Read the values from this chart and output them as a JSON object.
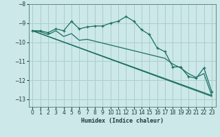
{
  "xlabel": "Humidex (Indice chaleur)",
  "background_color": "#cce8e8",
  "grid_color": "#aacece",
  "line_color": "#1a6e60",
  "xlim": [
    -0.5,
    23.5
  ],
  "ylim": [
    -13.4,
    -8.0
  ],
  "yticks": [
    -13,
    -12,
    -11,
    -10,
    -9,
    -8
  ],
  "xticks": [
    0,
    1,
    2,
    3,
    4,
    5,
    6,
    7,
    8,
    9,
    10,
    11,
    12,
    13,
    14,
    15,
    16,
    17,
    18,
    19,
    20,
    21,
    22,
    23
  ],
  "series1_x": [
    0,
    1,
    2,
    3,
    4,
    5,
    6,
    7,
    8,
    9,
    10,
    11,
    12,
    13,
    14,
    15,
    16,
    17,
    18,
    19,
    20,
    21,
    22,
    23
  ],
  "series1_y": [
    -9.4,
    -9.4,
    -9.5,
    -9.3,
    -9.4,
    -8.9,
    -9.3,
    -9.2,
    -9.15,
    -9.15,
    -9.0,
    -8.9,
    -8.65,
    -8.9,
    -9.35,
    -9.6,
    -10.3,
    -10.5,
    -11.3,
    -11.3,
    -11.8,
    -11.9,
    -11.35,
    -12.6
  ],
  "series2_x": [
    0,
    1,
    2,
    3,
    4,
    5,
    6,
    7,
    8,
    9,
    10,
    11,
    12,
    13,
    14,
    15,
    16,
    17,
    18,
    19,
    20,
    21,
    22,
    23
  ],
  "series2_y": [
    -9.4,
    -9.45,
    -9.6,
    -9.4,
    -9.7,
    -9.55,
    -9.9,
    -9.85,
    -9.95,
    -10.05,
    -10.15,
    -10.25,
    -10.35,
    -10.45,
    -10.55,
    -10.65,
    -10.75,
    -10.85,
    -11.15,
    -11.35,
    -11.65,
    -11.85,
    -11.65,
    -12.8
  ],
  "series3_x": [
    0,
    23
  ],
  "series3_y": [
    -9.4,
    -12.8
  ],
  "series4_x": [
    0,
    23
  ],
  "series4_y": [
    -9.4,
    -12.85
  ]
}
